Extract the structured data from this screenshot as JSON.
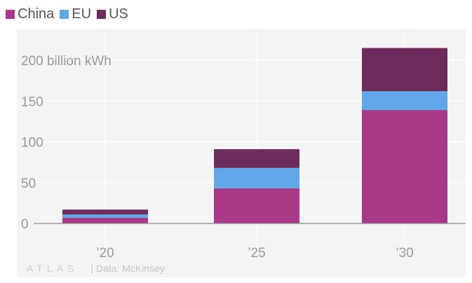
{
  "chart_data": {
    "type": "bar",
    "stacked": true,
    "categories": [
      "’20",
      "’25",
      "’30"
    ],
    "series": [
      {
        "name": "China",
        "color": "#a93988",
        "values": [
          7,
          43,
          139
        ]
      },
      {
        "name": "EU",
        "color": "#62a6ea",
        "values": [
          4,
          25,
          23
        ]
      },
      {
        "name": "US",
        "color": "#6e2c5c",
        "values": [
          6,
          23,
          53
        ]
      }
    ],
    "y_tick_labels": [
      "0",
      "50",
      "100",
      "150",
      "200 billion kWh"
    ],
    "y_ticks": [
      0,
      50,
      100,
      150,
      200
    ],
    "ylim": [
      0,
      220
    ],
    "grid": true,
    "legend": "top-left"
  },
  "footer": {
    "logo": "ATLAS",
    "source": "| Data: McKinsey"
  }
}
